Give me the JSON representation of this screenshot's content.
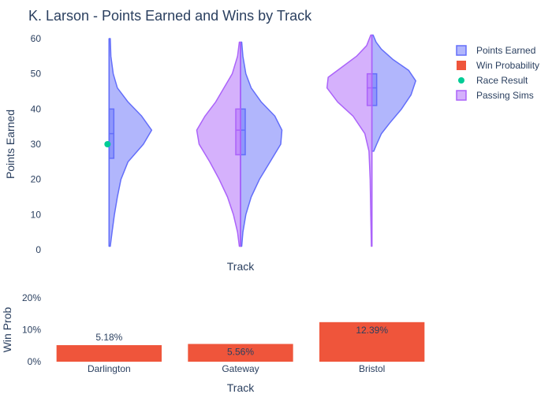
{
  "chart_title": "K. Larson - Points Earned and Wins by Track",
  "legend": {
    "placement": "top-right",
    "items": [
      {
        "label": "Points Earned",
        "color": "#636efa",
        "marker": "violin"
      },
      {
        "label": "Win Probability",
        "color": "#ef553b",
        "marker": "bar"
      },
      {
        "label": "Race Result",
        "color": "#00cc96",
        "marker": "dot"
      },
      {
        "label": "Passing Sims",
        "color": "#ab63fa",
        "marker": "violin"
      }
    ]
  },
  "chart_data": [
    {
      "type": "violin",
      "xlabel": "Track",
      "ylabel": "Points Earned",
      "ylim": [
        0,
        60
      ],
      "yticks": [
        0,
        10,
        20,
        30,
        40,
        50,
        60
      ],
      "grid": false,
      "categories": [
        "Darlington",
        "Gateway",
        "Bristol"
      ],
      "series": [
        {
          "name": "Points Earned",
          "color": "#636efa",
          "side": "positive",
          "values": [
            {
              "category": "Darlington",
              "min": 1,
              "q1": 26,
              "median": 33,
              "q3": 40,
              "max": 60,
              "density": [
                [
                  1,
                  0.02
                ],
                [
                  5,
                  0.05
                ],
                [
                  10,
                  0.09
                ],
                [
                  15,
                  0.14
                ],
                [
                  20,
                  0.2
                ],
                [
                  25,
                  0.32
                ],
                [
                  30,
                  0.58
                ],
                [
                  34,
                  0.72
                ],
                [
                  38,
                  0.55
                ],
                [
                  42,
                  0.32
                ],
                [
                  46,
                  0.14
                ],
                [
                  50,
                  0.07
                ],
                [
                  55,
                  0.03
                ],
                [
                  60,
                  0.02
                ]
              ]
            },
            {
              "category": "Gateway",
              "min": 1,
              "q1": 27,
              "median": 34,
              "q3": 40,
              "max": 59,
              "density": [
                [
                  1,
                  0.02
                ],
                [
                  5,
                  0.04
                ],
                [
                  10,
                  0.09
                ],
                [
                  15,
                  0.18
                ],
                [
                  20,
                  0.32
                ],
                [
                  25,
                  0.5
                ],
                [
                  30,
                  0.68
                ],
                [
                  34,
                  0.7
                ],
                [
                  38,
                  0.58
                ],
                [
                  42,
                  0.35
                ],
                [
                  46,
                  0.18
                ],
                [
                  50,
                  0.09
                ],
                [
                  55,
                  0.04
                ],
                [
                  59,
                  0.02
                ]
              ]
            },
            {
              "category": "Bristol",
              "min": 28,
              "q1": 41,
              "median": 46,
              "q3": 50,
              "max": 61,
              "density": [
                [
                  28,
                  0.03
                ],
                [
                  30,
                  0.08
                ],
                [
                  33,
                  0.16
                ],
                [
                  36,
                  0.3
                ],
                [
                  40,
                  0.5
                ],
                [
                  44,
                  0.66
                ],
                [
                  48,
                  0.74
                ],
                [
                  51,
                  0.62
                ],
                [
                  54,
                  0.36
                ],
                [
                  57,
                  0.16
                ],
                [
                  59,
                  0.07
                ],
                [
                  61,
                  0.02
                ]
              ]
            }
          ]
        },
        {
          "name": "Passing Sims",
          "color": "#ab63fa",
          "side": "negative",
          "values": [
            {
              "category": "Gateway",
              "min": 1,
              "q1": 27,
              "median": 34,
              "q3": 40,
              "max": 59,
              "density": [
                [
                  1,
                  0.02
                ],
                [
                  5,
                  0.05
                ],
                [
                  10,
                  0.12
                ],
                [
                  15,
                  0.22
                ],
                [
                  20,
                  0.36
                ],
                [
                  25,
                  0.52
                ],
                [
                  30,
                  0.7
                ],
                [
                  34,
                  0.74
                ],
                [
                  38,
                  0.6
                ],
                [
                  42,
                  0.42
                ],
                [
                  46,
                  0.28
                ],
                [
                  50,
                  0.14
                ],
                [
                  55,
                  0.05
                ],
                [
                  59,
                  0.02
                ]
              ]
            },
            {
              "category": "Bristol",
              "min": 1,
              "q1": 41,
              "median": 46,
              "q3": 50,
              "max": 61,
              "density": [
                [
                  1,
                  0.01
                ],
                [
                  10,
                  0.02
                ],
                [
                  20,
                  0.03
                ],
                [
                  28,
                  0.05
                ],
                [
                  33,
                  0.12
                ],
                [
                  38,
                  0.32
                ],
                [
                  42,
                  0.58
                ],
                [
                  46,
                  0.76
                ],
                [
                  49,
                  0.74
                ],
                [
                  52,
                  0.5
                ],
                [
                  55,
                  0.26
                ],
                [
                  58,
                  0.09
                ],
                [
                  61,
                  0.02
                ]
              ]
            }
          ]
        },
        {
          "name": "Race Result",
          "color": "#00cc96",
          "type": "scatter",
          "points": [
            {
              "category": "Darlington",
              "y": 30
            }
          ]
        }
      ]
    },
    {
      "type": "bar",
      "xlabel": "Track",
      "ylabel": "Win Prob",
      "ylim": [
        0,
        0.2
      ],
      "yticks": [
        0,
        0.1,
        0.2
      ],
      "ytick_labels": [
        "0%",
        "10%",
        "20%"
      ],
      "grid": false,
      "categories": [
        "Darlington",
        "Gateway",
        "Bristol"
      ],
      "series": [
        {
          "name": "Win Probability",
          "color": "#ef553b",
          "values": [
            0.0518,
            0.0556,
            0.1239
          ],
          "labels": [
            "5.18%",
            "5.56%",
            "12.39%"
          ],
          "label_positions": [
            "outside",
            "inside",
            "inside"
          ]
        }
      ]
    }
  ]
}
